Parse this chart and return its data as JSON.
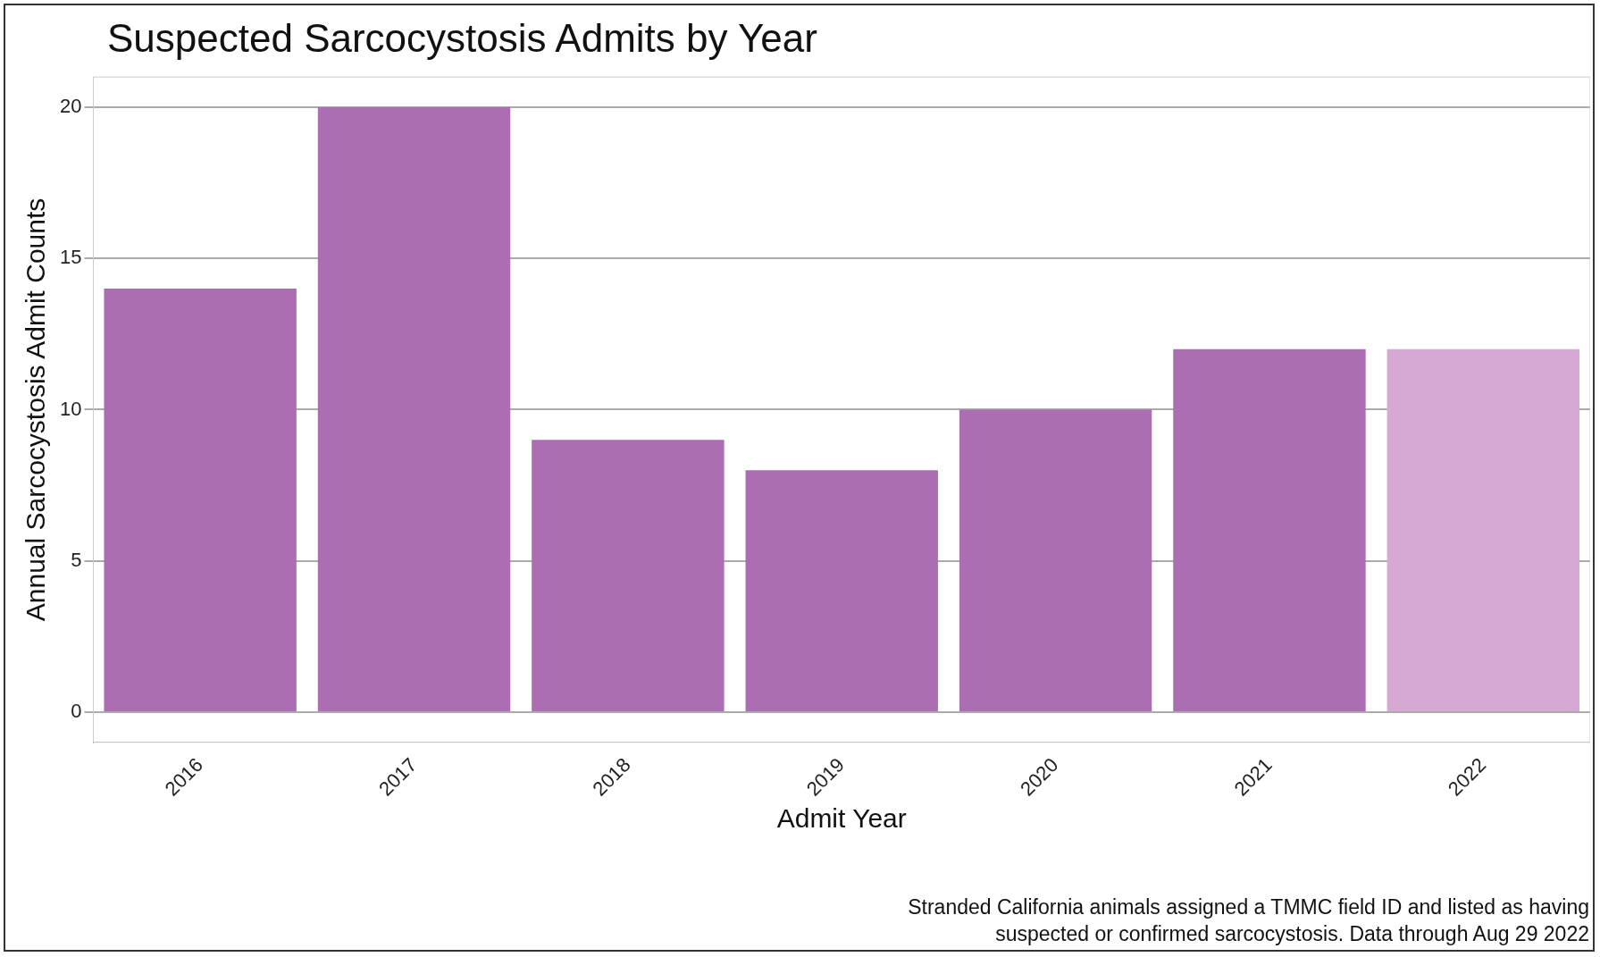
{
  "chart_data": {
    "type": "bar",
    "title": "Suspected Sarcocystosis Admits by Year",
    "xlabel": "Admit Year",
    "ylabel": "Annual Sarcocystosis Admit Counts",
    "categories": [
      "2016",
      "2017",
      "2018",
      "2019",
      "2020",
      "2021",
      "2022"
    ],
    "values": [
      14,
      20,
      9,
      8,
      10,
      12,
      12
    ],
    "colors": [
      "#ac6eb2",
      "#ac6eb2",
      "#ac6eb2",
      "#ac6eb2",
      "#ac6eb2",
      "#ac6eb2",
      "#d6a9d4"
    ],
    "ylim": [
      -1,
      21
    ],
    "yticks": [
      0,
      5,
      10,
      15,
      20
    ],
    "grid": "y",
    "legend": false,
    "annotations": [
      "Stranded California animals assigned a TMMC field ID and listed as having\nsuspected or confirmed sarcocystosis. Data through Aug 29 2022"
    ]
  }
}
